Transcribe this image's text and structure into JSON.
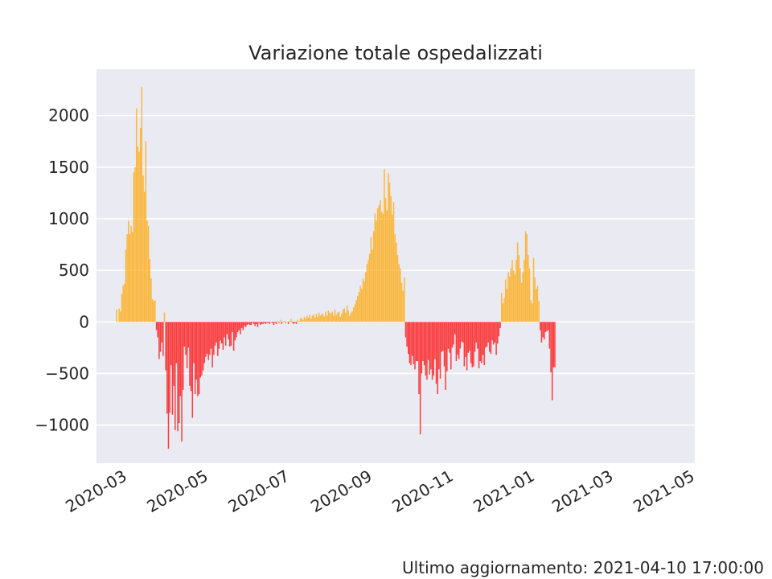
{
  "footer": {
    "label": "Ultimo aggiornamento: 2021-04-10 17:00:00"
  },
  "chart_data": {
    "type": "bar",
    "title": "Variazione totale ospedalizzati",
    "xlabel": "",
    "ylabel": "",
    "x_axis_kind": "date",
    "xlim": [
      "2020-02-10",
      "2021-05-04"
    ],
    "ylim": [
      -1370,
      2450
    ],
    "y_ticks": [
      -1000,
      -500,
      0,
      500,
      1000,
      1500,
      2000
    ],
    "y_tick_labels": [
      "−1000",
      "−500",
      "0",
      "500",
      "1000",
      "1500",
      "2000"
    ],
    "x_ticks": [
      "2020-03-01",
      "2020-05-01",
      "2020-07-01",
      "2020-09-01",
      "2020-11-01",
      "2021-01-01",
      "2021-03-01",
      "2021-05-01"
    ],
    "x_tick_labels": [
      "2020-03",
      "2020-05",
      "2020-07",
      "2020-09",
      "2020-11",
      "2021-01",
      "2021-03",
      "2021-05"
    ],
    "grid": true,
    "legend": "none",
    "colors": {
      "positive": "#ffa500",
      "negative": "#ff0000",
      "background": "#eaeaf2",
      "grid": "#ffffff",
      "text": "#262626"
    },
    "start_date": "2020-02-25",
    "values": [
      120,
      0,
      130,
      100,
      270,
      350,
      370,
      700,
      850,
      980,
      850,
      930,
      870,
      1450,
      1500,
      2070,
      1700,
      1650,
      1880,
      2280,
      1420,
      1260,
      1750,
      980,
      930,
      610,
      420,
      220,
      200,
      210,
      -80,
      -150,
      -360,
      -290,
      -200,
      -330,
      90,
      -470,
      -890,
      -1230,
      -880,
      -420,
      -900,
      -620,
      -1050,
      -400,
      -1060,
      -980,
      -720,
      -1160,
      -660,
      -240,
      -320,
      -450,
      -250,
      -620,
      -670,
      -930,
      -400,
      -700,
      -560,
      -720,
      -700,
      -540,
      -520,
      -470,
      -400,
      -340,
      -310,
      -370,
      -320,
      -260,
      -440,
      -320,
      -230,
      -200,
      -330,
      -260,
      -180,
      -210,
      -270,
      -150,
      -230,
      -120,
      -170,
      -240,
      -230,
      -100,
      -280,
      -180,
      -150,
      -100,
      -80,
      -120,
      -60,
      -80,
      -40,
      -50,
      -30,
      -20,
      -30,
      -30,
      -10,
      -20,
      -40,
      -20,
      -50,
      -10,
      -30,
      -20,
      -20,
      -10,
      -20,
      -10,
      -10,
      -20,
      -5,
      -10,
      -30,
      -10,
      -20,
      10,
      -10,
      20,
      -20,
      10,
      10,
      -10,
      5,
      -20,
      10,
      30,
      -10,
      -20,
      -10,
      -20,
      20,
      10,
      30,
      40,
      20,
      50,
      30,
      60,
      40,
      70,
      30,
      60,
      70,
      40,
      80,
      50,
      90,
      60,
      80,
      70,
      50,
      100,
      60,
      110,
      90,
      80,
      100,
      60,
      120,
      70,
      90,
      100,
      50,
      80,
      120,
      130,
      90,
      160,
      110,
      60,
      90,
      100,
      140,
      170,
      210,
      250,
      290,
      350,
      320,
      420,
      390,
      480,
      560,
      600,
      660,
      820,
      700,
      880,
      1050,
      980,
      1100,
      1130,
      1180,
      1070,
      1050,
      1480,
      1200,
      1080,
      1440,
      1350,
      1220,
      1040,
      1160,
      850,
      770,
      650,
      560,
      520,
      380,
      300,
      430,
      -150,
      -240,
      -310,
      -400,
      -420,
      -330,
      -410,
      -460,
      -380,
      -380,
      -700,
      -1090,
      -500,
      -380,
      -420,
      -520,
      -560,
      -370,
      -510,
      -460,
      -560,
      -520,
      -360,
      -600,
      -700,
      -460,
      -550,
      -290,
      -280,
      -430,
      -660,
      -480,
      -260,
      -300,
      -460,
      -250,
      -220,
      -120,
      -380,
      -320,
      -360,
      -260,
      -190,
      -200,
      -430,
      -340,
      -470,
      -300,
      -280,
      -400,
      -440,
      -430,
      -290,
      -200,
      -260,
      -450,
      -380,
      -400,
      -320,
      -420,
      -250,
      -240,
      -200,
      -290,
      -310,
      -180,
      -220,
      -200,
      -320,
      -210,
      -140,
      -60,
      280,
      180,
      230,
      410,
      320,
      480,
      440,
      520,
      600,
      500,
      460,
      600,
      770,
      650,
      520,
      380,
      480,
      600,
      880,
      850,
      650,
      520,
      210,
      180,
      620,
      430,
      320,
      350,
      200,
      -80,
      -200,
      -150,
      -170,
      -100,
      -90,
      -80,
      -260,
      -490,
      -760,
      -440,
      -440
    ]
  }
}
